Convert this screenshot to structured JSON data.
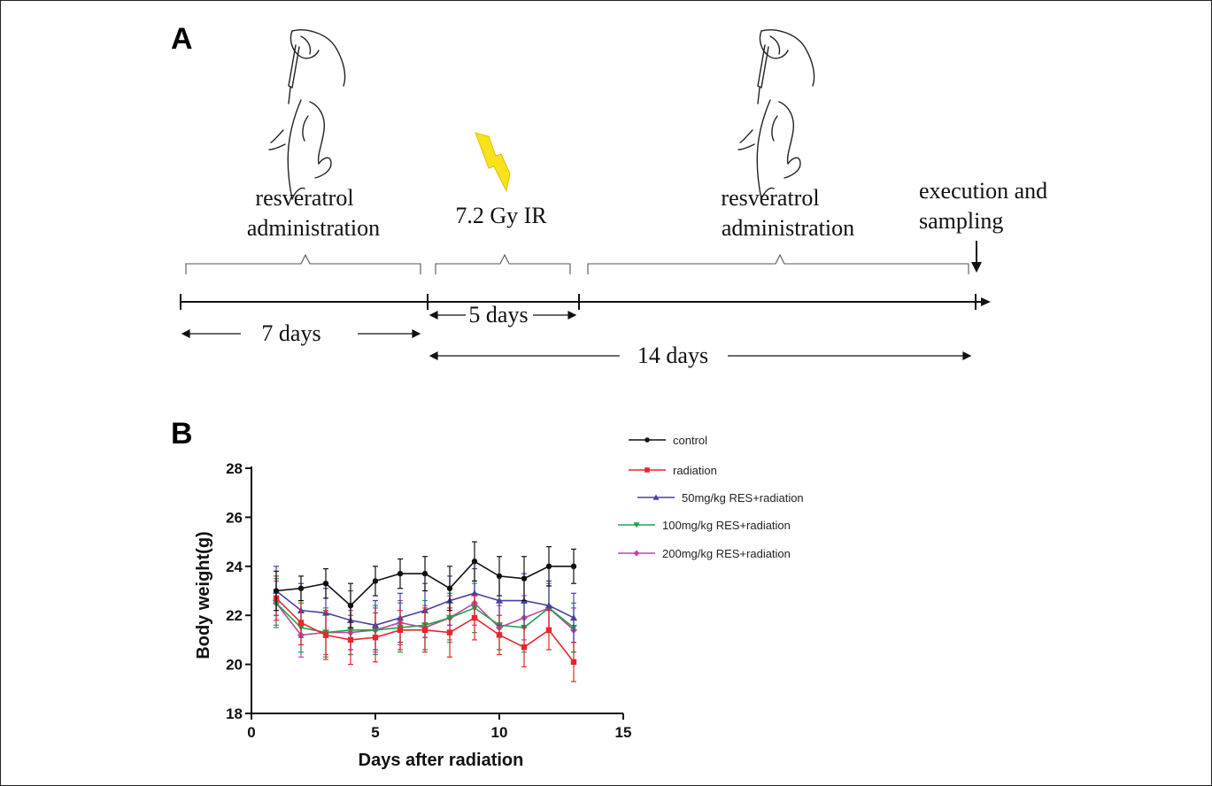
{
  "panels": {
    "a": "A",
    "b": "B"
  },
  "timeline": {
    "phase1_label_line1": "resveratrol",
    "phase1_label_line2": "administration",
    "irradiation_label": "7.2 Gy IR",
    "phase2_label_line1": "resveratrol",
    "phase2_label_line2": "administration",
    "end_label_line1": "execution and",
    "end_label_line2": "sampling",
    "span1": "7 days",
    "span2": "5 days",
    "span3": "14 days"
  },
  "chart_data": {
    "type": "line",
    "xlabel": "Days after radiation",
    "ylabel": "Body weight(g)",
    "xlim": [
      0,
      15
    ],
    "ylim": [
      18,
      28
    ],
    "xticks": [
      0,
      5,
      10,
      15
    ],
    "yticks": [
      18,
      20,
      22,
      24,
      26,
      28
    ],
    "grid": false,
    "legend_position": "top-right",
    "x": [
      1,
      2,
      3,
      4,
      5,
      6,
      7,
      8,
      9,
      10,
      11,
      12,
      13
    ],
    "series": [
      {
        "name": "control",
        "color": "#111111",
        "marker": "circle",
        "values": [
          23.0,
          23.1,
          23.3,
          22.4,
          23.4,
          23.7,
          23.7,
          23.1,
          24.2,
          23.6,
          23.5,
          24.0,
          24.0
        ],
        "errors": [
          0.8,
          0.5,
          0.6,
          0.9,
          0.6,
          0.6,
          0.7,
          0.9,
          0.8,
          0.8,
          0.9,
          0.8,
          0.7
        ]
      },
      {
        "name": "radiation",
        "color": "#e8262b",
        "marker": "square",
        "values": [
          22.7,
          21.7,
          21.2,
          21.0,
          21.1,
          21.4,
          21.4,
          21.3,
          21.9,
          21.2,
          20.7,
          21.4,
          20.1
        ],
        "errors": [
          0.9,
          0.9,
          1.0,
          1.0,
          1.0,
          0.8,
          0.9,
          1.0,
          0.9,
          0.8,
          0.8,
          0.8,
          0.8
        ]
      },
      {
        "name": "50mg/kg RES+radiation",
        "color": "#4a3f9f",
        "marker": "triangle",
        "values": [
          23.0,
          22.2,
          22.1,
          21.8,
          21.6,
          21.9,
          22.2,
          22.6,
          22.9,
          22.6,
          22.6,
          22.4,
          21.9
        ],
        "errors": [
          1.0,
          1.1,
          1.0,
          1.2,
          1.0,
          1.0,
          1.1,
          1.0,
          1.0,
          1.0,
          1.1,
          1.0,
          1.0
        ]
      },
      {
        "name": "100mg/kg RES+radiation",
        "color": "#1aa64b",
        "marker": "triangle-down",
        "values": [
          22.5,
          21.5,
          21.3,
          21.4,
          21.4,
          21.5,
          21.6,
          21.9,
          22.3,
          21.6,
          21.5,
          22.3,
          21.5
        ],
        "errors": [
          1.0,
          1.0,
          1.0,
          1.0,
          1.0,
          1.0,
          1.0,
          1.0,
          1.0,
          1.0,
          1.0,
          1.0,
          1.0
        ]
      },
      {
        "name": "200mg/kg RES+radiation",
        "color": "#c2479f",
        "marker": "diamond",
        "values": [
          22.5,
          21.2,
          21.3,
          21.3,
          21.4,
          21.7,
          21.5,
          21.9,
          22.5,
          21.5,
          21.9,
          22.3,
          21.4
        ],
        "errors": [
          0.9,
          0.9,
          0.9,
          0.9,
          0.9,
          0.9,
          0.9,
          0.9,
          0.9,
          0.9,
          0.9,
          0.9,
          0.9
        ]
      }
    ]
  }
}
